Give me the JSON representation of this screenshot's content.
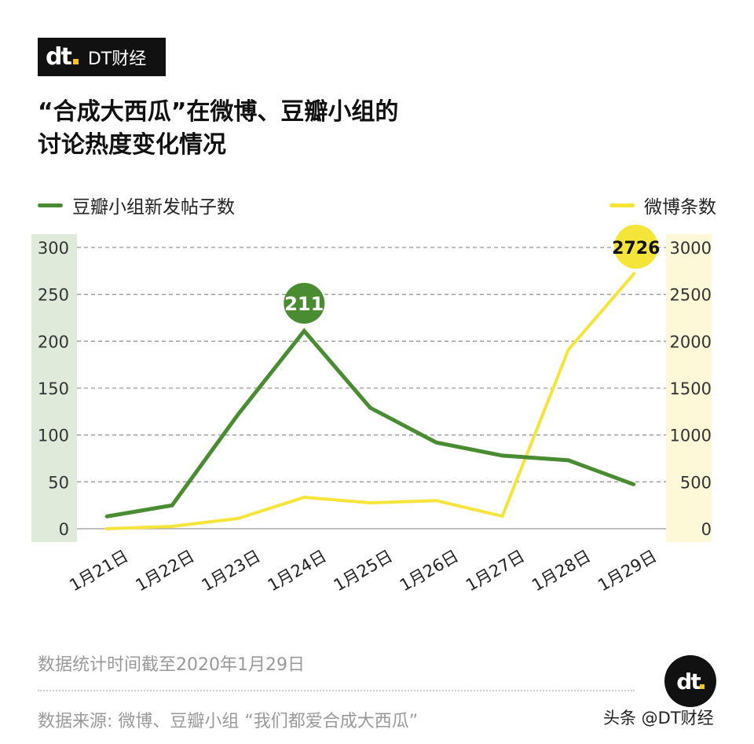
{
  "brand": {
    "mark": "dt",
    "name": "DT财经"
  },
  "title": {
    "line1": "“合成大西瓜”在微博、豆瓣小组的",
    "line2": "讨论热度变化情况"
  },
  "footer": {
    "note": "数据统计时间截至2020年1月29日",
    "source": "数据来源: 微博、豆瓣小组 “我们都爱合成大西瓜”",
    "credit": "头条 @DT财经"
  },
  "chart_data": {
    "type": "line",
    "title": "“合成大西瓜”在微博、豆瓣小组的讨论热度变化情况",
    "categories": [
      "1月21日",
      "1月22日",
      "1月23日",
      "1月24日",
      "1月25日",
      "1月26日",
      "1月27日",
      "1月28日",
      "1月29日"
    ],
    "series": [
      {
        "name": "豆瓣小组新发帖子数",
        "axis": "left",
        "color": "#4a8c32",
        "values": [
          13,
          25,
          122,
          211,
          129,
          92,
          78,
          73,
          47
        ],
        "callout_index": 3,
        "callout": "211"
      },
      {
        "name": "微博条数",
        "axis": "right",
        "color": "#f5e53a",
        "values": [
          0,
          25,
          110,
          335,
          277,
          300,
          134,
          1910,
          2726
        ],
        "callout_index": 8,
        "callout": "2726"
      }
    ],
    "left_axis": {
      "ylim": [
        0,
        300
      ],
      "ticks": [
        "0",
        "50",
        "100",
        "150",
        "200",
        "250",
        "300"
      ],
      "band_color": "#dfeadb"
    },
    "right_axis": {
      "ylim": [
        0,
        3000
      ],
      "ticks": [
        "0",
        "500",
        "1000",
        "1500",
        "2000",
        "2500",
        "3000"
      ],
      "band_color": "#fdf8d8"
    },
    "grid": true,
    "legend": [
      "top-left",
      "top-right"
    ]
  }
}
